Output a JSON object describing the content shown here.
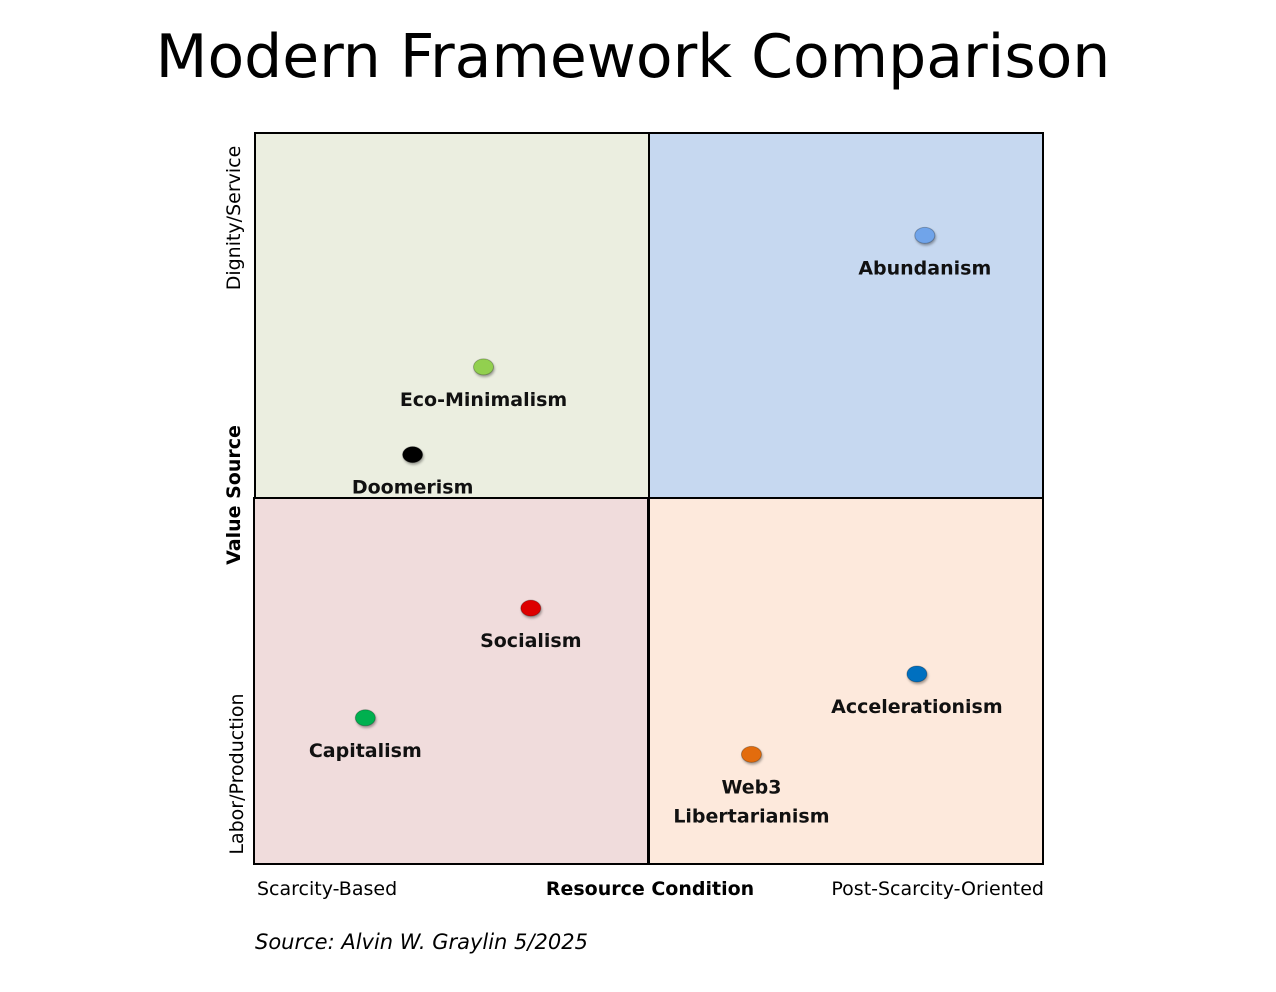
{
  "chart_data": {
    "type": "scatter",
    "title": "Modern Framework Comparison",
    "xlabel": "Resource Condition",
    "ylabel": "Value Source",
    "x_tick_labels": {
      "low": "Scarcity-Based",
      "high": "Post-Scarcity-Oriented"
    },
    "y_tick_labels": {
      "low": "Labor/Production",
      "high": "Dignity/Service"
    },
    "xlim": [
      0,
      100
    ],
    "ylim": [
      0,
      100
    ],
    "grid": false,
    "quadrant_colors": {
      "top_left": "#ebeee0",
      "top_right": "#c6d8f0",
      "bottom_left": "#f0dcdc",
      "bottom_right": "#fde9dc"
    },
    "points": [
      {
        "label": "Abundanism",
        "x": 85,
        "y": 86,
        "color": "#6fa4ea"
      },
      {
        "label": "Eco-Minimalism",
        "x": 29,
        "y": 68,
        "color": "#92d050"
      },
      {
        "label": "Doomerism",
        "x": 20,
        "y": 56,
        "color": "#000000"
      },
      {
        "label": "Socialism",
        "x": 35,
        "y": 35,
        "color": "#dd0000"
      },
      {
        "label": "Capitalism",
        "x": 14,
        "y": 20,
        "color": "#00b050"
      },
      {
        "label": "Accelerationism",
        "x": 84,
        "y": 26,
        "color": "#0070c0"
      },
      {
        "label": "Web3 Libertarianism",
        "x": 63,
        "y": 15,
        "color": "#e36c09"
      }
    ],
    "source_note": "Source: Alvin W. Graylin 5/2025"
  }
}
